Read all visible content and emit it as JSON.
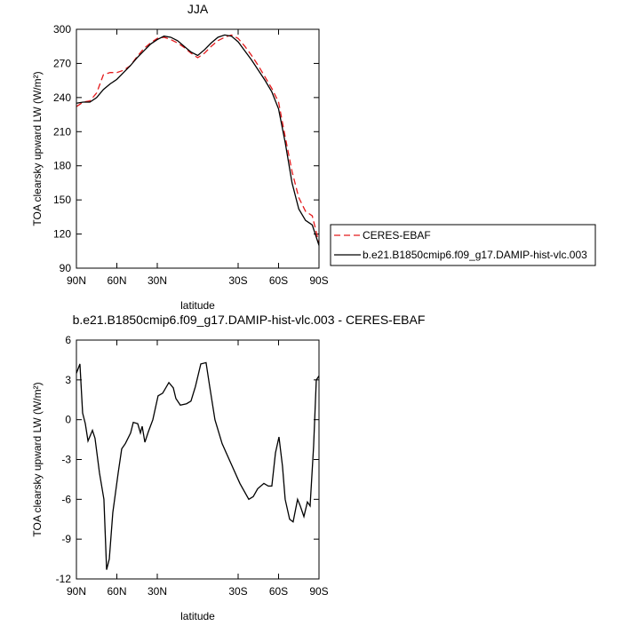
{
  "chart_data": [
    {
      "type": "line",
      "title": "JJA",
      "x_label": "latitude",
      "y_label": "TOA clearsky upward LW (W/m²)",
      "x": [
        90,
        85,
        80,
        75,
        70,
        65,
        60,
        55,
        50,
        45,
        40,
        35,
        30,
        25,
        20,
        15,
        10,
        5,
        0,
        -5,
        -10,
        -15,
        -20,
        -25,
        -30,
        -35,
        -40,
        -45,
        -50,
        -55,
        -60,
        -65,
        -70,
        -75,
        -80,
        -85,
        -90
      ],
      "series": [
        {
          "name": "CERES-EBAF",
          "color": "#e41a1c",
          "dash": true,
          "values": [
            232,
            236,
            237,
            244,
            260,
            262,
            262,
            264,
            268,
            276,
            283,
            288,
            292,
            293,
            291,
            288,
            284,
            279,
            275,
            279,
            285,
            290,
            293,
            295,
            292,
            285,
            277,
            268,
            258,
            248,
            236,
            205,
            175,
            152,
            140,
            136,
            112
          ]
        },
        {
          "name": "b.e21.B1850cmip6.f09_g17.DAMIP-hist-vlc.003",
          "color": "#000000",
          "dash": false,
          "values": [
            235,
            236,
            236,
            240,
            247,
            252,
            256,
            262,
            268,
            275,
            281,
            287,
            291,
            294,
            293,
            290,
            285,
            280,
            277,
            282,
            288,
            293,
            295,
            294,
            289,
            281,
            273,
            264,
            255,
            245,
            230,
            200,
            165,
            142,
            132,
            128,
            110
          ]
        }
      ],
      "xlim": [
        90,
        -90
      ],
      "xticks": [
        {
          "value": 90,
          "label": "90N"
        },
        {
          "value": 60,
          "label": "60N"
        },
        {
          "value": 30,
          "label": "30N"
        },
        {
          "value": -30,
          "label": "30S"
        },
        {
          "value": -60,
          "label": "60S"
        },
        {
          "value": -90,
          "label": "90S"
        }
      ],
      "ylim": [
        90,
        300
      ],
      "yticks": [
        90,
        120,
        150,
        180,
        210,
        240,
        270,
        300
      ],
      "legend": "right"
    },
    {
      "type": "line",
      "title": "b.e21.B1850cmip6.f09_g17.DAMIP-hist-vlc.003 - CERES-EBAF",
      "x_label": "latitude",
      "y_label": "TOA clearsky upward LW (W/m²)",
      "x": [
        90,
        87.4,
        85.4,
        83.4,
        81.4,
        78.1,
        76.2,
        72.9,
        69.6,
        67.6,
        65.6,
        63,
        59,
        56.4,
        53.7,
        49.8,
        47.8,
        44.5,
        42.5,
        41.2,
        39.2,
        36.6,
        33.3,
        29.4,
        26,
        21.4,
        18.1,
        16.2,
        12.9,
        8.3,
        5,
        1.7,
        -2.3,
        -6.2,
        -8.9,
        -12.8,
        -18.1,
        -24.7,
        -31.3,
        -37.9,
        -41.2,
        -44.5,
        -49.1,
        -52.4,
        -55,
        -57.7,
        -60.3,
        -62.9,
        -64.9,
        -68.2,
        -70.8,
        -74.1,
        -76.1,
        -78.8,
        -81.4,
        -83.4,
        -86,
        -88,
        -90
      ],
      "series": [
        {
          "name": null,
          "color": "#000000",
          "dash": false,
          "values": [
            3.5,
            4.2,
            0.5,
            -0.3,
            -1.6,
            -0.8,
            -1.4,
            -4,
            -6,
            -11.3,
            -10.5,
            -7,
            -4,
            -2.2,
            -1.8,
            -1,
            -0.2,
            -0.3,
            -1,
            -0.5,
            -1.7,
            -0.9,
            0,
            1.8,
            2,
            2.8,
            2.4,
            1.6,
            1.1,
            1.2,
            1.4,
            2.5,
            4.2,
            4.3,
            2.5,
            0,
            -1.8,
            -3.3,
            -4.8,
            -6,
            -5.8,
            -5.2,
            -4.8,
            -5,
            -5,
            -2.5,
            -1.3,
            -3.5,
            -6,
            -7.5,
            -7.7,
            -6,
            -6.5,
            -7.3,
            -6.2,
            -6.5,
            -2,
            3,
            3.3
          ]
        }
      ],
      "xlim": [
        90,
        -90
      ],
      "xticks": [
        {
          "value": 90,
          "label": "90N"
        },
        {
          "value": 60,
          "label": "60N"
        },
        {
          "value": 30,
          "label": "30N"
        },
        {
          "value": -30,
          "label": "30S"
        },
        {
          "value": -60,
          "label": "60S"
        },
        {
          "value": -90,
          "label": "90S"
        }
      ],
      "ylim": [
        -12,
        6
      ],
      "yticks": [
        -12,
        -9,
        -6,
        -3,
        0,
        3,
        6
      ]
    }
  ]
}
